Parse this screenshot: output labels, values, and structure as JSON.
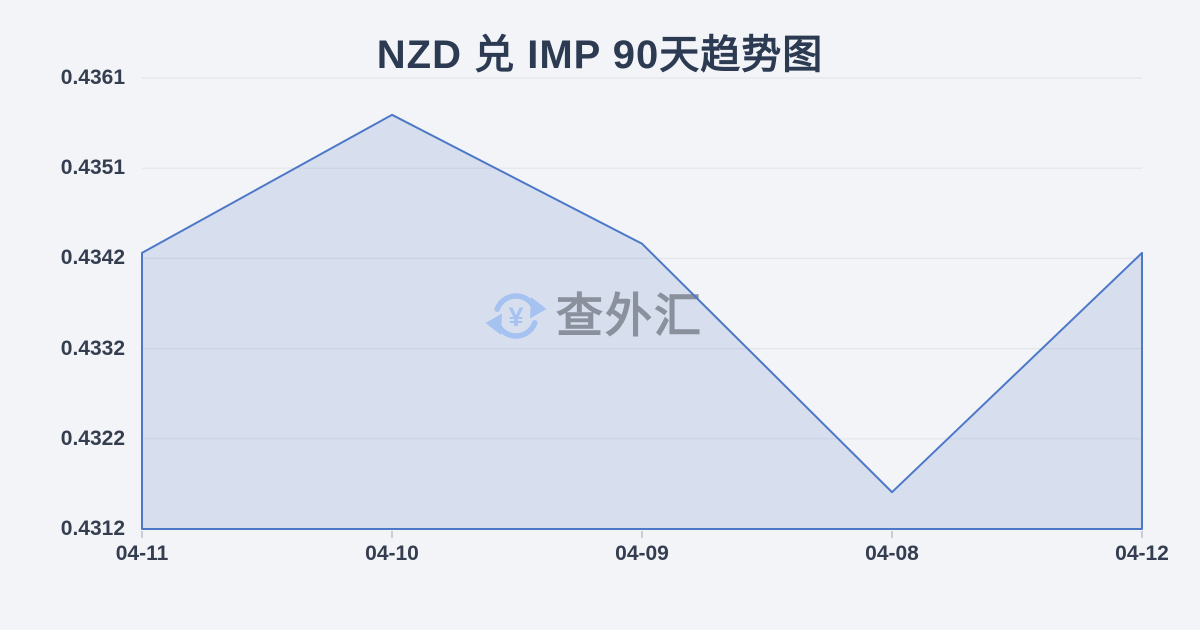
{
  "title": "NZD 兑 IMP 90天趋势图",
  "watermark": {
    "brand": "查外汇",
    "icon_symbol": "¥"
  },
  "colors": {
    "background": "#f2f4f7",
    "title": "#2c3a52",
    "axis_label": "#353e50",
    "gridline": "#e2e5eb",
    "line": "#4d78c8",
    "fill": "rgba(77,120,200,0.16)",
    "tick": "#c9cdd6",
    "watermark_text": "#8a909c",
    "watermark_icon": "#a6c2f0"
  },
  "chart_data": {
    "type": "area",
    "title": "NZD 兑 IMP 90天趋势图",
    "series_name": "NZD/IMP",
    "categories": [
      "04-11",
      "04-10",
      "04-09",
      "04-08",
      "04-12"
    ],
    "values": [
      0.4342,
      0.4357,
      0.4343,
      0.4316,
      0.4342
    ],
    "y_ticks": [
      "0.4361",
      "0.4351",
      "0.4342",
      "0.4332",
      "0.4322",
      "0.4312"
    ],
    "ylim": [
      0.4312,
      0.4361
    ],
    "xlabel": "",
    "ylabel": "",
    "grid": true,
    "legend": false
  }
}
